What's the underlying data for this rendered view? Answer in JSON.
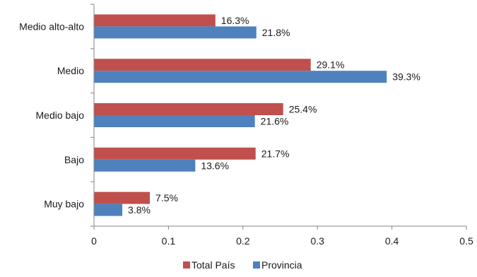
{
  "chart_data": {
    "type": "bar",
    "orientation": "horizontal",
    "categories": [
      "Medio alto-alto",
      "Medio",
      "Medio bajo",
      "Bajo",
      "Muy bajo"
    ],
    "series": [
      {
        "name": "Total País",
        "color": "#c0504d",
        "values": [
          0.163,
          0.291,
          0.254,
          0.217,
          0.075
        ],
        "labels": [
          "16.3%",
          "29.1%",
          "25.4%",
          "21.7%",
          "7.5%"
        ]
      },
      {
        "name": "Provincia",
        "color": "#4f81bd",
        "values": [
          0.218,
          0.393,
          0.216,
          0.136,
          0.038
        ],
        "labels": [
          "21.8%",
          "39.3%",
          "21.6%",
          "13.6%",
          "3.8%"
        ]
      }
    ],
    "xticks": [
      "0",
      "0.1",
      "0.2",
      "0.3",
      "0.4",
      "0.5"
    ],
    "xlim": [
      0,
      0.5
    ],
    "grid": false,
    "legend": "bottom"
  }
}
